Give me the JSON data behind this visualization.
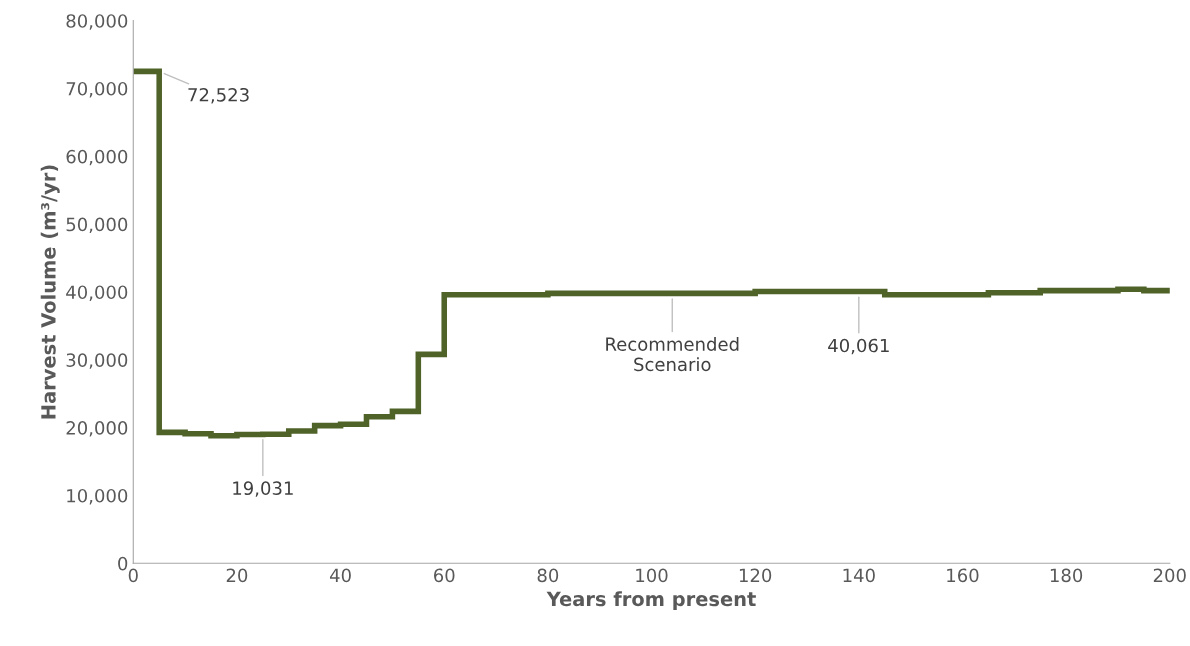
{
  "chart_data": {
    "type": "step",
    "xlabel": "Years from present",
    "ylabel": "Harvest Volume (m³/yr)",
    "x": [
      0,
      5,
      10,
      15,
      20,
      25,
      30,
      35,
      40,
      45,
      50,
      55,
      60,
      80,
      120,
      145,
      165,
      175,
      190,
      195,
      200
    ],
    "series": [
      {
        "color": "#4f6228",
        "values": [
          72523,
          19300,
          19100,
          18800,
          19000,
          19031,
          19500,
          20300,
          20500,
          21600,
          22400,
          30800,
          39600,
          39800,
          40061,
          39600,
          39900,
          40200,
          40400,
          40200,
          40200
        ]
      }
    ],
    "xlim": [
      0,
      200
    ],
    "xticks": [
      0,
      20,
      40,
      60,
      80,
      100,
      120,
      140,
      160,
      180,
      200
    ],
    "ylim": [
      0,
      80000
    ],
    "yticks": [
      {
        "value": 0,
        "label": "0"
      },
      {
        "value": 10000,
        "label": "10,000"
      },
      {
        "value": 20000,
        "label": "20,000"
      },
      {
        "value": 30000,
        "label": "30,000"
      },
      {
        "value": 40000,
        "label": "40,000"
      },
      {
        "value": 50000,
        "label": "50,000"
      },
      {
        "value": 60000,
        "label": "60,000"
      },
      {
        "value": 70000,
        "label": "70,000"
      },
      {
        "value": 80000,
        "label": "80,000"
      }
    ],
    "grid": false,
    "legend": false,
    "marker": "none",
    "line_style": "solid",
    "annotations": [
      {
        "text": "72,523",
        "x": 5,
        "y": 72523
      },
      {
        "text": "19,031",
        "x": 25,
        "y": 19031
      },
      {
        "text": "Recommended\nScenario",
        "x": 104,
        "y": 39800
      },
      {
        "text": "40,061",
        "x": 140,
        "y": 40061
      }
    ]
  }
}
